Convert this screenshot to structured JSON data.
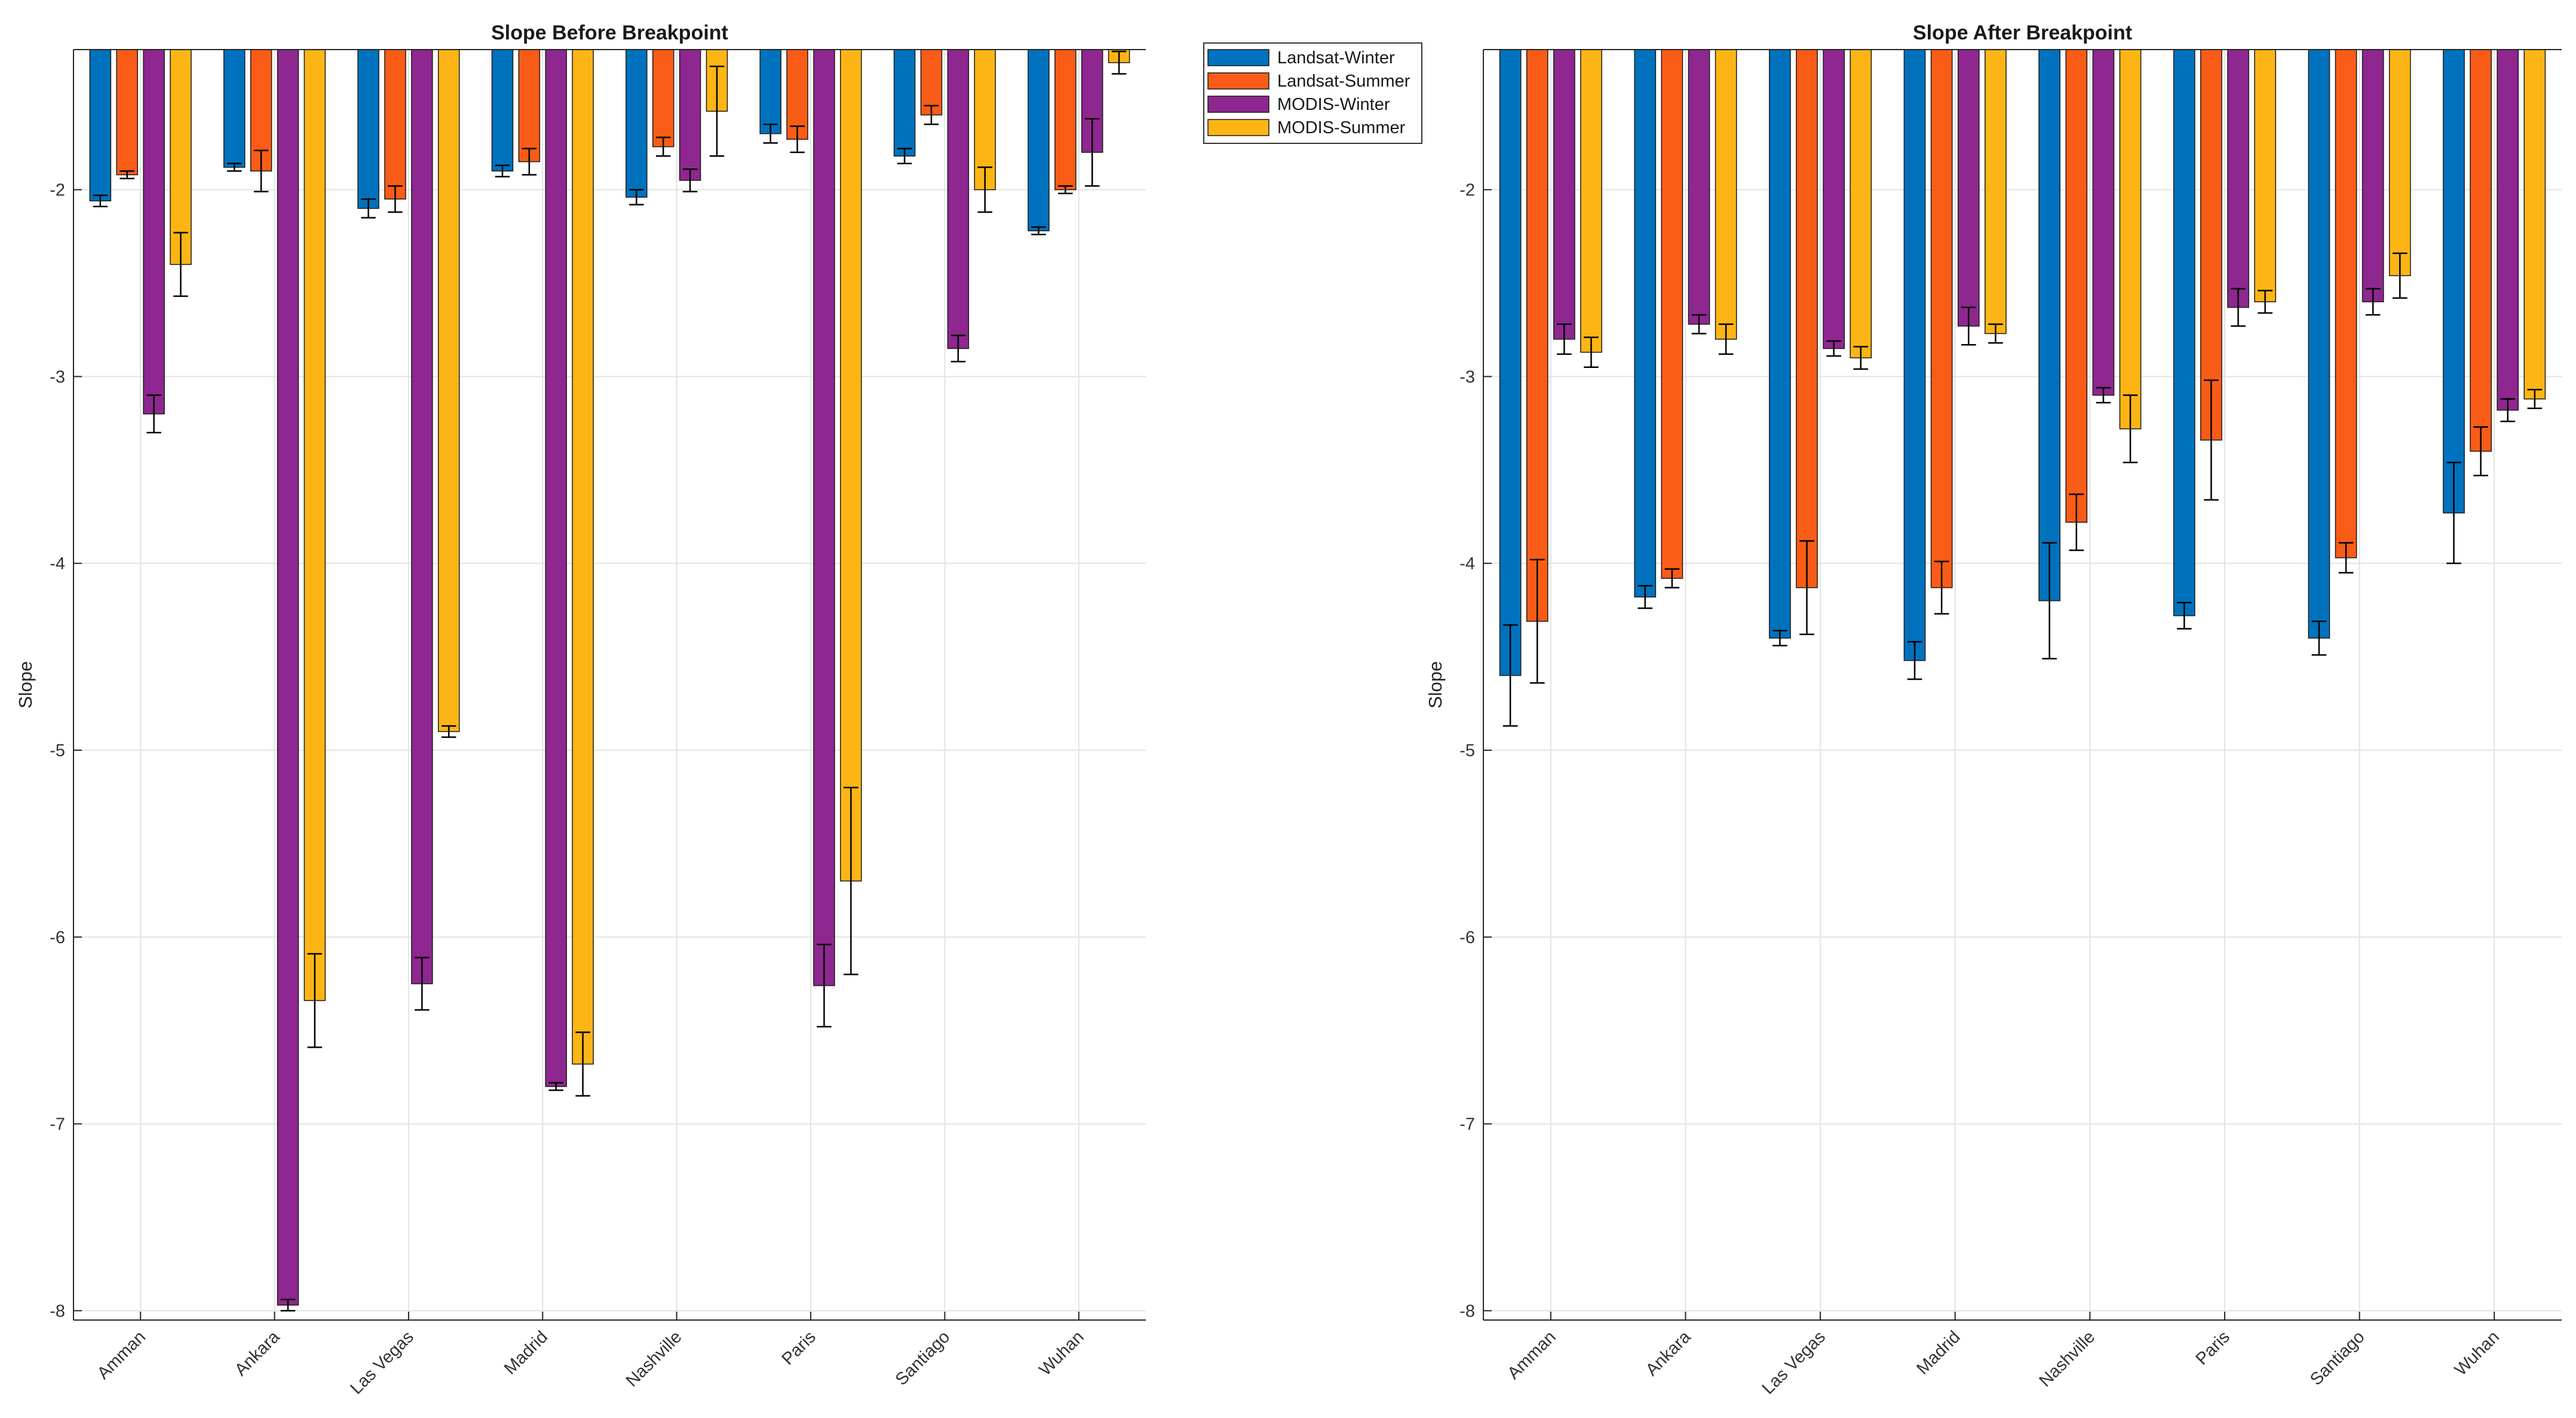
{
  "colors": {
    "Landsat-Winter": "#0072BD",
    "Landsat-Summer": "#F95C17",
    "MODIS-Winter": "#8E278F",
    "MODIS-Summer": "#FDB515"
  },
  "chart_data": [
    {
      "type": "bar",
      "title": "Slope Before Breakpoint",
      "ylabel": "Slope",
      "xlabel": "",
      "ylim": [
        -8.05,
        -1.25
      ],
      "yticks": [
        -2,
        -3,
        -4,
        -5,
        -6,
        -7,
        -8
      ],
      "grid": true,
      "legend": "outside-top-right",
      "categories": [
        "Amman",
        "Ankara",
        "Las Vegas",
        "Madrid",
        "Nashville",
        "Paris",
        "Santiago",
        "Wuhan"
      ],
      "series": [
        {
          "name": "Landsat-Winter",
          "values": [
            -2.06,
            -1.88,
            -2.1,
            -1.9,
            -2.04,
            -1.7,
            -1.82,
            -2.22
          ],
          "errors": [
            0.03,
            0.02,
            0.05,
            0.03,
            0.04,
            0.05,
            0.04,
            0.02
          ]
        },
        {
          "name": "Landsat-Summer",
          "values": [
            -1.92,
            -1.9,
            -2.05,
            -1.85,
            -1.77,
            -1.73,
            -1.6,
            -2.0
          ],
          "errors": [
            0.02,
            0.11,
            0.07,
            0.07,
            0.05,
            0.07,
            0.05,
            0.02
          ]
        },
        {
          "name": "MODIS-Winter",
          "values": [
            -3.2,
            -7.97,
            -6.25,
            -6.8,
            -1.95,
            -6.26,
            -2.85,
            -1.8
          ],
          "errors": [
            0.1,
            0.03,
            0.14,
            0.02,
            0.06,
            0.22,
            0.07,
            0.18
          ]
        },
        {
          "name": "MODIS-Summer",
          "values": [
            -2.4,
            -6.34,
            -4.9,
            -6.68,
            -1.58,
            -5.7,
            -2.0,
            -1.32
          ],
          "errors": [
            0.17,
            0.25,
            0.03,
            0.17,
            0.24,
            0.5,
            0.12,
            0.06
          ]
        }
      ]
    },
    {
      "type": "bar",
      "title": "Slope After Breakpoint",
      "ylabel": "Slope",
      "xlabel": "",
      "ylim": [
        -8.05,
        -1.25
      ],
      "yticks": [
        -2,
        -3,
        -4,
        -5,
        -6,
        -7,
        -8
      ],
      "grid": true,
      "categories": [
        "Amman",
        "Ankara",
        "Las Vegas",
        "Madrid",
        "Nashville",
        "Paris",
        "Santiago",
        "Wuhan"
      ],
      "series": [
        {
          "name": "Landsat-Winter",
          "values": [
            -4.6,
            -4.18,
            -4.4,
            -4.52,
            -4.2,
            -4.28,
            -4.4,
            -3.73
          ],
          "errors": [
            0.27,
            0.06,
            0.04,
            0.1,
            0.31,
            0.07,
            0.09,
            0.27
          ]
        },
        {
          "name": "Landsat-Summer",
          "values": [
            -4.31,
            -4.08,
            -4.13,
            -4.13,
            -3.78,
            -3.34,
            -3.97,
            -3.4
          ],
          "errors": [
            0.33,
            0.05,
            0.25,
            0.14,
            0.15,
            0.32,
            0.08,
            0.13
          ]
        },
        {
          "name": "MODIS-Winter",
          "values": [
            -2.8,
            -2.72,
            -2.85,
            -2.73,
            -3.1,
            -2.63,
            -2.6,
            -3.18
          ],
          "errors": [
            0.08,
            0.05,
            0.04,
            0.1,
            0.04,
            0.1,
            0.07,
            0.06
          ]
        },
        {
          "name": "MODIS-Summer",
          "values": [
            -2.87,
            -2.8,
            -2.9,
            -2.77,
            -3.28,
            -2.6,
            -2.46,
            -3.12
          ],
          "errors": [
            0.08,
            0.08,
            0.06,
            0.05,
            0.18,
            0.06,
            0.12,
            0.05
          ]
        }
      ]
    }
  ]
}
